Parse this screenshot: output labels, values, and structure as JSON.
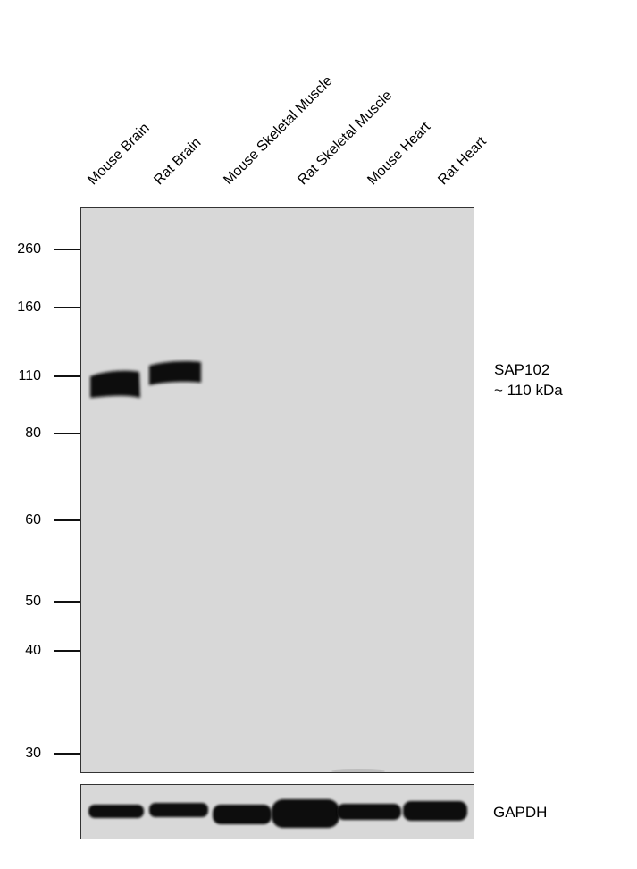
{
  "lanes": [
    {
      "label": "Mouse Brain"
    },
    {
      "label": "Rat Brain"
    },
    {
      "label": "Mouse Skeletal Muscle"
    },
    {
      "label": "Rat Skeletal Muscle"
    },
    {
      "label": "Mouse Heart"
    },
    {
      "label": "Rat Heart"
    }
  ],
  "markers": [
    {
      "label": "260"
    },
    {
      "label": "160"
    },
    {
      "label": "110"
    },
    {
      "label": "80"
    },
    {
      "label": "60"
    },
    {
      "label": "50"
    },
    {
      "label": "40"
    },
    {
      "label": "30"
    }
  ],
  "target": {
    "name": "SAP102",
    "size": "~ 110 kDa"
  },
  "loading_control": {
    "name": "GAPDH"
  },
  "colors": {
    "membrane": "#d8d8d8",
    "band": "#111111"
  }
}
